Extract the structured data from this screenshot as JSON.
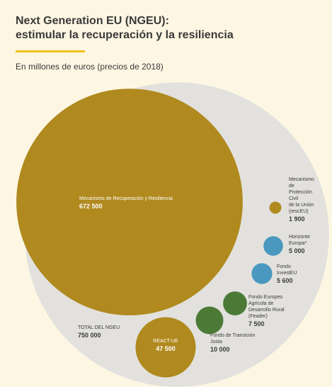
{
  "chart_data": {
    "type": "bubble",
    "title": "Next Generation EU (NGEU):\nestimular la recuperación y la resiliencia",
    "subtitle": "En millones de euros (precios de 2018)",
    "categories": [
      "Mecanismo de Recuperación y Resiliencia",
      "Mecanismo\nde\nProtección\nCivil\nde la Unión\n(rescEU)",
      "Horizonte\nEuropa*",
      "Fondo\nInvestEU",
      "Fondo Europeo\nAgrícola de\nDesarrollo Rural\n(Feader)",
      "Fondo de Transición\nJusta",
      "REACT-UE"
    ],
    "values": [
      672500,
      1900,
      5000,
      5600,
      7500,
      10000,
      47500
    ],
    "value_labels": [
      "672 500",
      "1 900",
      "5 000",
      "5 600",
      "7 500",
      "10 000",
      "47 500"
    ],
    "colors": [
      "#b08a1f",
      "#b08a1f",
      "#4a98bf",
      "#4a98bf",
      "#4b7a37",
      "#4b7a37",
      "#b08a1f"
    ],
    "total_label": "TOTAL DEL NGEU",
    "total": 750000,
    "total_value_label": "750 000"
  }
}
